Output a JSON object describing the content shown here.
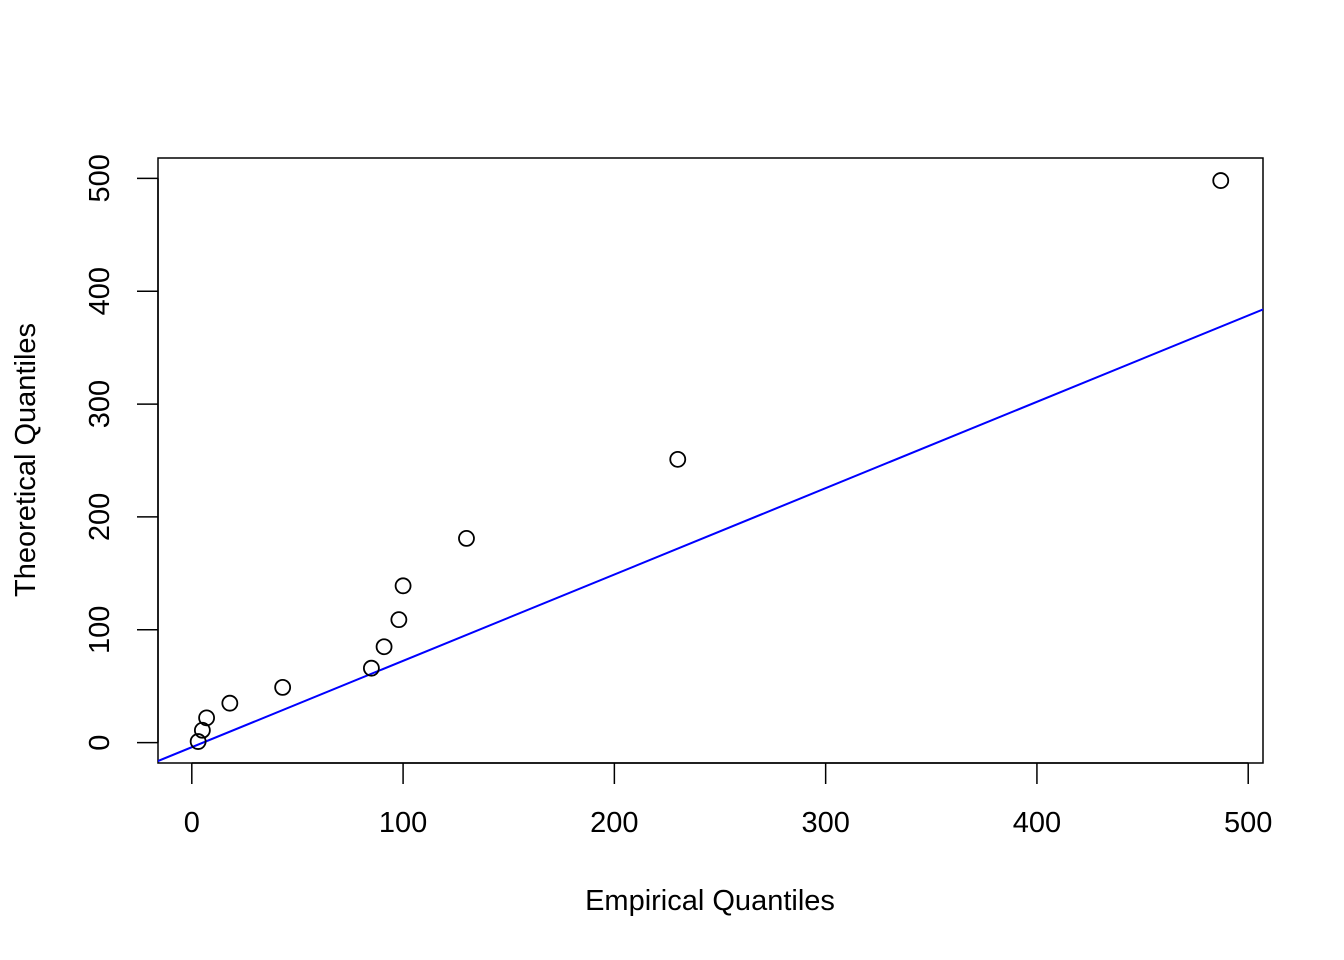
{
  "chart_data": {
    "type": "scatter",
    "title": "",
    "xlabel": "Empirical Quantiles",
    "ylabel": "Theoretical Quantiles",
    "xlim": [
      -16,
      507
    ],
    "ylim": [
      -18,
      518
    ],
    "x_ticks": [
      0,
      100,
      200,
      300,
      400,
      500
    ],
    "y_ticks": [
      0,
      100,
      200,
      300,
      400,
      500
    ],
    "x_tick_labels": [
      "0",
      "100",
      "200",
      "300",
      "400",
      "500"
    ],
    "y_tick_labels": [
      "0",
      "100",
      "200",
      "300",
      "400",
      "500"
    ],
    "grid": false,
    "legend": "none",
    "point_style": "open-circle",
    "points": [
      {
        "x": 3,
        "y": 1
      },
      {
        "x": 5,
        "y": 11
      },
      {
        "x": 7,
        "y": 22
      },
      {
        "x": 18,
        "y": 35
      },
      {
        "x": 43,
        "y": 49
      },
      {
        "x": 85,
        "y": 66
      },
      {
        "x": 91,
        "y": 85
      },
      {
        "x": 98,
        "y": 109
      },
      {
        "x": 100,
        "y": 139
      },
      {
        "x": 130,
        "y": 181
      },
      {
        "x": 230,
        "y": 251
      },
      {
        "x": 487,
        "y": 498
      }
    ],
    "reference_line": {
      "slope": 0.765,
      "intercept": -4.0
    },
    "colors": {
      "points": "#000000",
      "reference_line": "#0000ff",
      "axes": "#000000"
    }
  }
}
